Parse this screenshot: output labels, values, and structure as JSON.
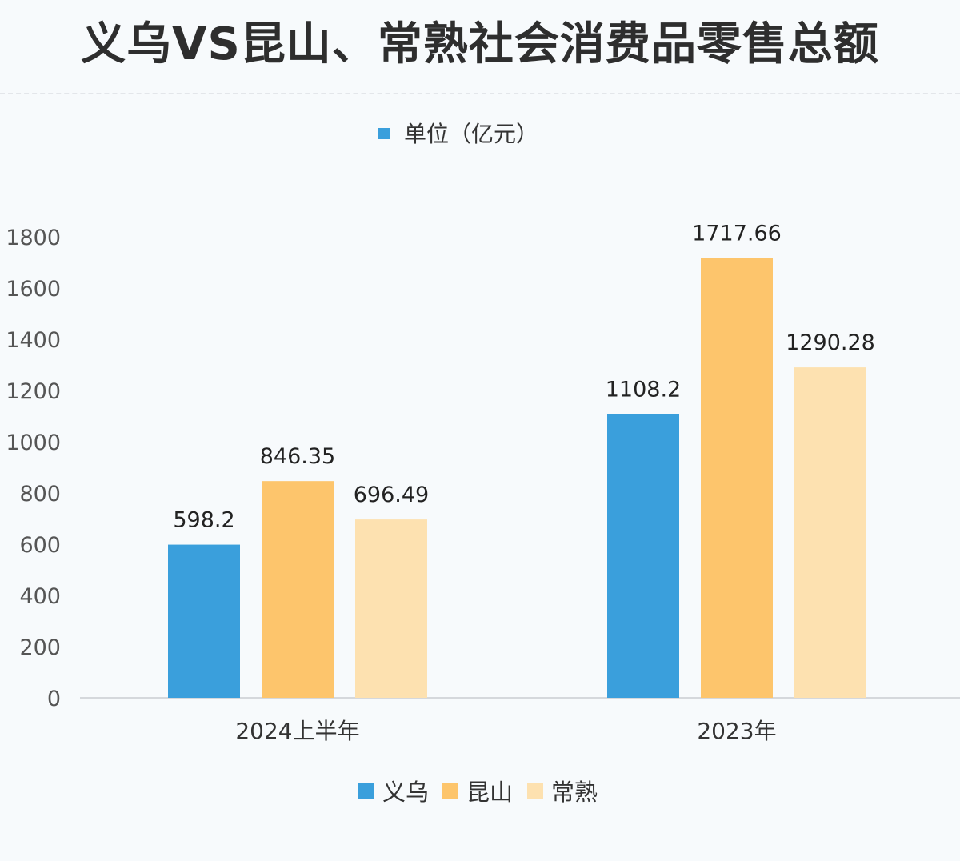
{
  "title": "义乌VS昆山、常熟社会消费品零售总额",
  "chart_data": {
    "type": "bar",
    "title": "义乌VS昆山、常熟社会消费品零售总额",
    "unit_legend": "单位（亿元）",
    "categories": [
      "2024上半年",
      "2023年"
    ],
    "series": [
      {
        "name": "义乌",
        "color": "#3a9fdc",
        "values": [
          598.2,
          1108.2
        ],
        "labels": [
          "598.2",
          "1108.2"
        ]
      },
      {
        "name": "昆山",
        "color": "#fdc56c",
        "values": [
          846.35,
          1717.66
        ],
        "labels": [
          "846.35",
          "1717.66"
        ]
      },
      {
        "name": "常熟",
        "color": "#fde1b0",
        "values": [
          696.49,
          1290.28
        ],
        "labels": [
          "696.49",
          "1290.28"
        ]
      }
    ],
    "ylim": [
      0,
      1800
    ],
    "yticks": [
      "0",
      "200",
      "400",
      "600",
      "800",
      "1000",
      "1200",
      "1400",
      "1600",
      "1800"
    ],
    "grid": false,
    "legend": "bottom"
  }
}
